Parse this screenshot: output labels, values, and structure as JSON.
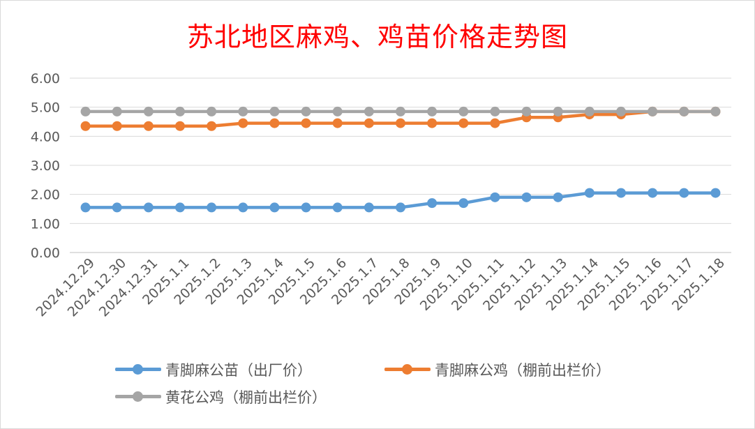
{
  "chart_data": {
    "type": "line",
    "title": "苏北地区麻鸡、鸡苗价格走势图",
    "categories": [
      "2024.12.29",
      "2024.12.30",
      "2024.12.31",
      "2025.1.1",
      "2025.1.2",
      "2025.1.3",
      "2025.1.4",
      "2025.1.5",
      "2025.1.6",
      "2025.1.7",
      "2025.1.8",
      "2025.1.9",
      "2025.1.10",
      "2025.1.11",
      "2025.1.12",
      "2025.1.13",
      "2025.1.14",
      "2025.1.15",
      "2025.1.16",
      "2025.1.17",
      "2025.1.18"
    ],
    "yticks": [
      "0.00",
      "1.00",
      "2.00",
      "3.00",
      "4.00",
      "5.00",
      "6.00"
    ],
    "ylim": [
      0,
      6
    ],
    "grid": true,
    "legend_position": "bottom",
    "series": [
      {
        "name": "青脚麻公苗（出厂价）",
        "color": "#5b9bd5",
        "values": [
          1.55,
          1.55,
          1.55,
          1.55,
          1.55,
          1.55,
          1.55,
          1.55,
          1.55,
          1.55,
          1.55,
          1.7,
          1.7,
          1.9,
          1.9,
          1.9,
          2.05,
          2.05,
          2.05,
          2.05,
          2.05
        ]
      },
      {
        "name": "青脚麻公鸡（棚前出栏价）",
        "color": "#ed7d31",
        "values": [
          4.35,
          4.35,
          4.35,
          4.35,
          4.35,
          4.45,
          4.45,
          4.45,
          4.45,
          4.45,
          4.45,
          4.45,
          4.45,
          4.45,
          4.65,
          4.65,
          4.75,
          4.75,
          4.85,
          4.85,
          4.85
        ]
      },
      {
        "name": "黄花公鸡（棚前出栏价）",
        "color": "#a5a5a5",
        "values": [
          4.85,
          4.85,
          4.85,
          4.85,
          4.85,
          4.85,
          4.85,
          4.85,
          4.85,
          4.85,
          4.85,
          4.85,
          4.85,
          4.85,
          4.85,
          4.85,
          4.85,
          4.85,
          4.85,
          4.85,
          4.85
        ]
      }
    ]
  }
}
